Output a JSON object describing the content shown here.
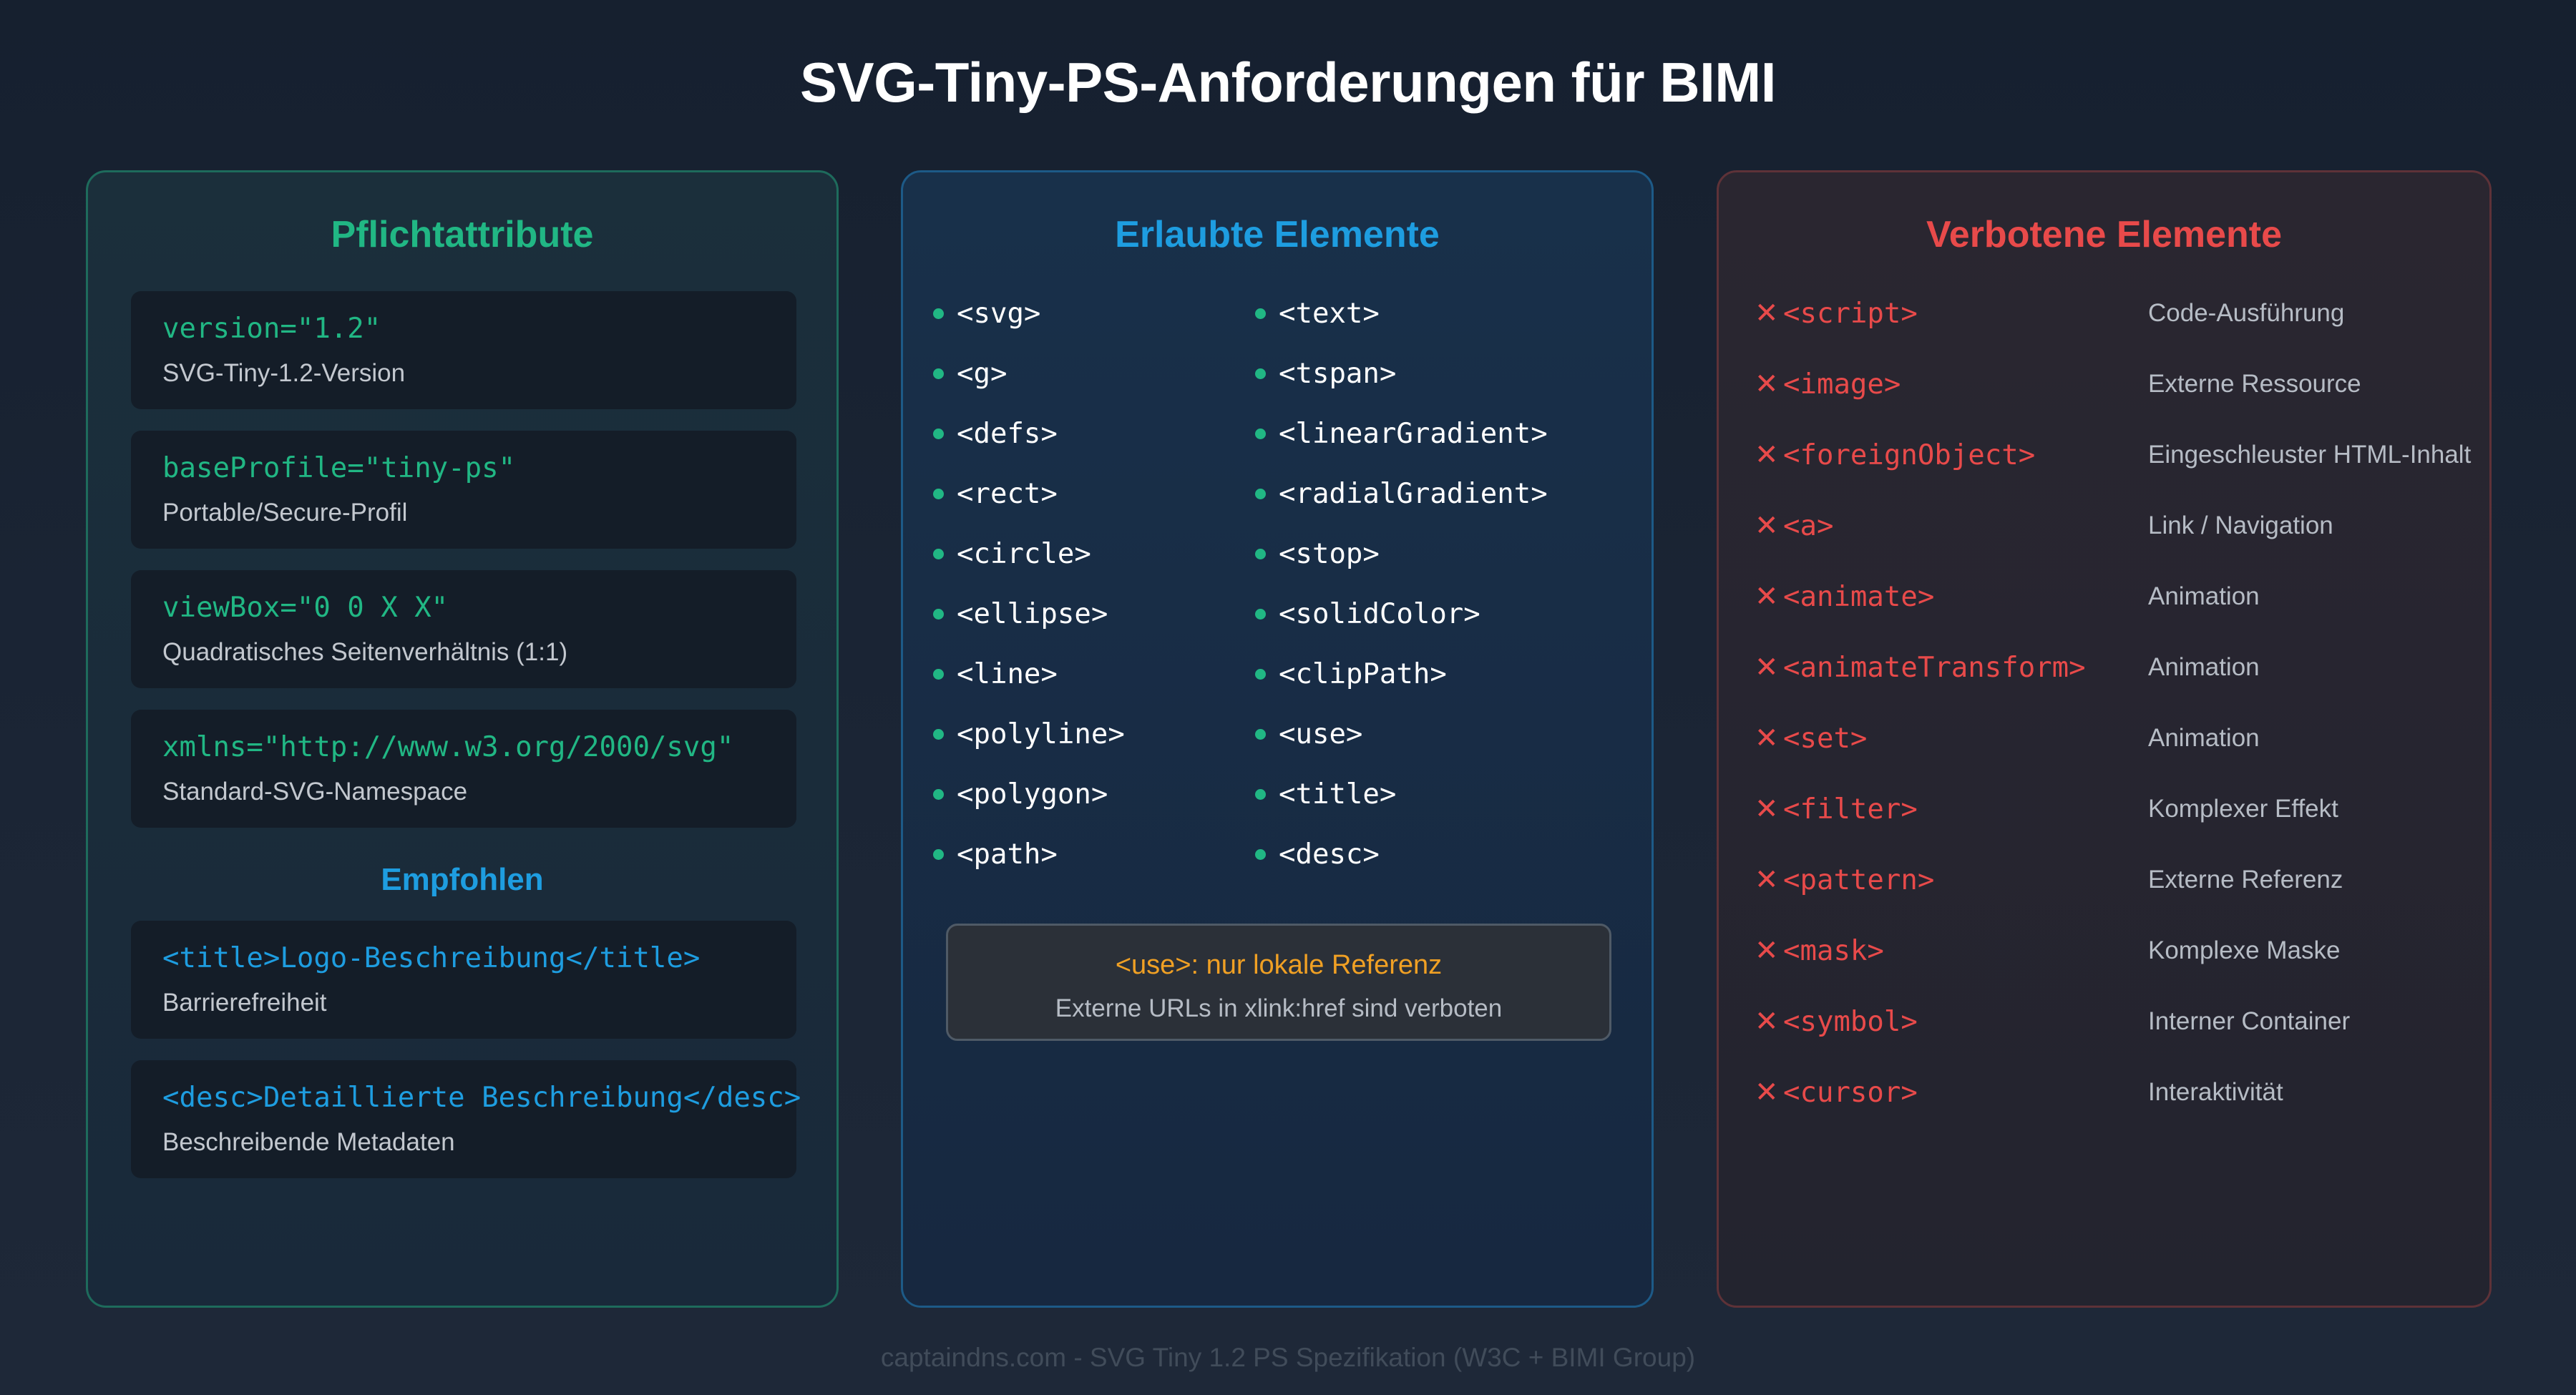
{
  "title": "SVG-Tiny-PS-Anforderungen für BIMI",
  "required": {
    "heading": "Pflichtattribute",
    "items": [
      {
        "code": "version=\"1.2\"",
        "desc": "SVG-Tiny-1.2-Version"
      },
      {
        "code": "baseProfile=\"tiny-ps\"",
        "desc": "Portable/Secure-Profil"
      },
      {
        "code": "viewBox=\"0 0 X X\"",
        "desc": "Quadratisches Seitenverhältnis (1:1)"
      },
      {
        "code": "xmlns=\"http://www.w3.org/2000/svg\"",
        "desc": "Standard-SVG-Namespace"
      }
    ],
    "recommended_heading": "Empfohlen",
    "recommended": [
      {
        "code": "<title>Logo-Beschreibung</title>",
        "desc": "Barrierefreiheit"
      },
      {
        "code": "<desc>Detaillierte Beschreibung</desc>",
        "desc": "Beschreibende Metadaten"
      }
    ]
  },
  "allowed": {
    "heading": "Erlaubte Elemente",
    "left": [
      "<svg>",
      "<g>",
      "<defs>",
      "<rect>",
      "<circle>",
      "<ellipse>",
      "<line>",
      "<polyline>",
      "<polygon>",
      "<path>"
    ],
    "right": [
      "<text>",
      "<tspan>",
      "<linearGradient>",
      "<radialGradient>",
      "<stop>",
      "<solidColor>",
      "<clipPath>",
      "<use>",
      "<title>",
      "<desc>"
    ],
    "note_title": "<use>: nur lokale Referenz",
    "note_text": "Externe URLs in xlink:href sind verboten"
  },
  "forbidden": {
    "heading": "Verbotene Elemente",
    "mark": "✕",
    "items": [
      {
        "element": "<script>",
        "reason": "Code-Ausführung"
      },
      {
        "element": "<image>",
        "reason": "Externe Ressource"
      },
      {
        "element": "<foreignObject>",
        "reason": "Eingeschleuster HTML-Inhalt"
      },
      {
        "element": "<a>",
        "reason": "Link / Navigation"
      },
      {
        "element": "<animate>",
        "reason": "Animation"
      },
      {
        "element": "<animateTransform>",
        "reason": "Animation"
      },
      {
        "element": "<set>",
        "reason": "Animation"
      },
      {
        "element": "<filter>",
        "reason": "Komplexer Effekt"
      },
      {
        "element": "<pattern>",
        "reason": "Externe Referenz"
      },
      {
        "element": "<mask>",
        "reason": "Komplexe Maske"
      },
      {
        "element": "<symbol>",
        "reason": "Interner Container"
      },
      {
        "element": "<cursor>",
        "reason": "Interaktivität"
      }
    ]
  },
  "footer": "captaindns.com - SVG Tiny 1.2 PS Spezifikation (W3C + BIMI Group)",
  "colors": {
    "green": "#21b784",
    "blue": "#1e9de0",
    "red": "#e84a4a",
    "orange": "#f0a024"
  }
}
